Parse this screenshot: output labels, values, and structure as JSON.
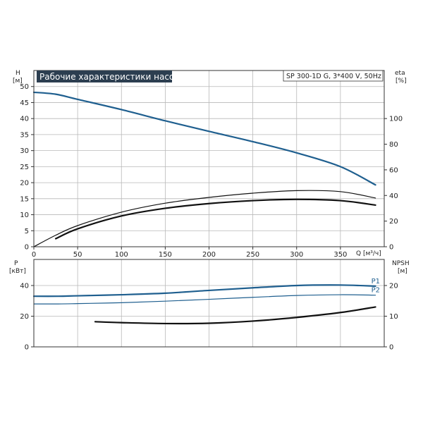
{
  "chart_data": [
    {
      "type": "line",
      "title": "Рабочие характеристики насоса",
      "subtitle": "SP 300-1D G, 3*400 V, 50Hz",
      "xlabel": "Q [м³/ч]",
      "ylabel_left": "H",
      "ylabel_left_unit": "[м]",
      "ylabel_right": "eta",
      "ylabel_right_unit": "[%]",
      "xlim": [
        0,
        400
      ],
      "ylim": [
        0,
        55
      ],
      "ylim_right": [
        0,
        137.5
      ],
      "x_ticks": [
        0,
        50,
        100,
        150,
        200,
        250,
        300,
        350
      ],
      "y_ticks": [
        0,
        5,
        10,
        15,
        20,
        25,
        30,
        35,
        40,
        45,
        50
      ],
      "y_right_ticks": [
        0,
        20,
        40,
        60,
        80,
        100
      ],
      "grid": true,
      "series": [
        {
          "axis": "left",
          "color": "#1f5f8f",
          "width": 2.2,
          "x": [
            0,
            25,
            50,
            100,
            150,
            200,
            250,
            300,
            350,
            390
          ],
          "y": [
            48.2,
            47.6,
            46.0,
            42.8,
            39.3,
            36.0,
            32.8,
            29.3,
            25.0,
            19.3
          ]
        },
        {
          "axis": "right",
          "color": "#111111",
          "width": 1.2,
          "x": [
            0,
            25,
            50,
            100,
            150,
            200,
            250,
            300,
            350,
            390
          ],
          "y": [
            0,
            9.0,
            16.5,
            27.0,
            34.0,
            38.5,
            41.8,
            43.8,
            43.0,
            38.0
          ]
        },
        {
          "axis": "right",
          "color": "#111111",
          "width": 2.2,
          "x": [
            25,
            50,
            100,
            150,
            200,
            250,
            300,
            350,
            390
          ],
          "y": [
            6.3,
            14.0,
            24.0,
            30.0,
            33.7,
            36.0,
            37.0,
            36.0,
            32.5
          ]
        }
      ]
    },
    {
      "type": "line",
      "ylabel_left": "P",
      "ylabel_left_unit": "[кВт]",
      "ylabel_right": "NPSH",
      "ylabel_right_unit": "[м]",
      "xlim": [
        0,
        400
      ],
      "ylim": [
        0,
        57
      ],
      "ylim_right": [
        0,
        28.5
      ],
      "y_ticks": [
        0,
        20,
        40
      ],
      "y_right_ticks": [
        0,
        10,
        20
      ],
      "grid": true,
      "series": [
        {
          "name": "P1",
          "axis": "left",
          "color": "#1f5f8f",
          "width": 2.2,
          "x": [
            0,
            28,
            50,
            100,
            150,
            200,
            250,
            300,
            350,
            390
          ],
          "y": [
            33.0,
            33.0,
            33.3,
            34.0,
            35.0,
            36.8,
            38.5,
            40.0,
            40.3,
            39.6
          ]
        },
        {
          "name": "P2",
          "axis": "left",
          "color": "#1f5f8f",
          "width": 1.2,
          "x": [
            0,
            28,
            50,
            100,
            150,
            200,
            250,
            300,
            350,
            390
          ],
          "y": [
            28.0,
            28.0,
            28.2,
            28.8,
            29.8,
            31.0,
            32.3,
            33.5,
            34.0,
            33.7
          ]
        },
        {
          "axis": "right",
          "color": "#111111",
          "width": 2.2,
          "x": [
            70,
            100,
            150,
            200,
            250,
            300,
            350,
            390
          ],
          "y": [
            8.2,
            7.9,
            7.6,
            7.7,
            8.4,
            9.6,
            11.2,
            13.0
          ]
        }
      ]
    }
  ]
}
